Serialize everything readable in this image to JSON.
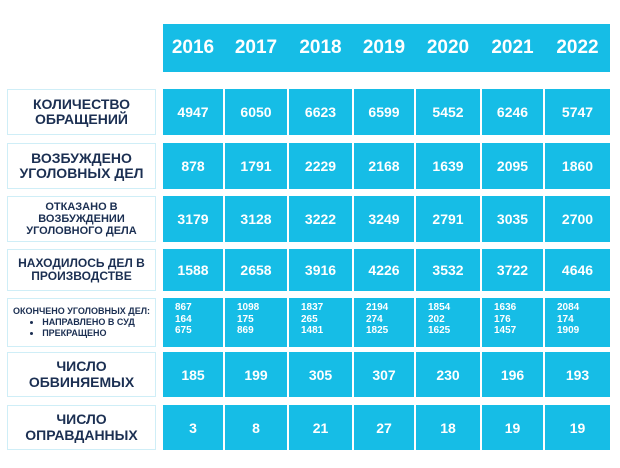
{
  "chart_data": {
    "type": "table",
    "columns": [
      "2016",
      "2017",
      "2018",
      "2019",
      "2020",
      "2021",
      "2022"
    ],
    "rows": [
      {
        "label": "КОЛИЧЕСТВО ОБРАЩЕНИЙ",
        "values": [
          4947,
          6050,
          6623,
          6599,
          5452,
          6246,
          5747
        ]
      },
      {
        "label": "ВОЗБУЖДЕНО УГОЛОВНЫХ ДЕЛ",
        "values": [
          878,
          1791,
          2229,
          2168,
          1639,
          2095,
          1860
        ]
      },
      {
        "label": "ОТКАЗАНО В ВОЗБУЖДЕНИИ УГОЛОВНОГО ДЕЛА",
        "values": [
          3179,
          3128,
          3222,
          3249,
          2791,
          3035,
          2700
        ]
      },
      {
        "label": "НАХОДИЛОСЬ ДЕЛ В ПРОИЗВОДСТВЕ",
        "values": [
          1588,
          2658,
          3916,
          4226,
          3532,
          3722,
          4646
        ]
      },
      {
        "label": "ОКОНЧЕНО УГОЛОВНЫХ ДЕЛ:",
        "sub_labels": [
          "НАПРАВЛЕНО В СУД",
          "ПРЕКРАЩЕНО"
        ],
        "values": [
          [
            867,
            164,
            675
          ],
          [
            1098,
            175,
            869
          ],
          [
            1837,
            265,
            1481
          ],
          [
            2194,
            274,
            1825
          ],
          [
            1854,
            202,
            1625
          ],
          [
            1636,
            176,
            1457
          ],
          [
            2084,
            174,
            1909
          ]
        ]
      },
      {
        "label": "ЧИСЛО ОБВИНЯЕМЫХ",
        "values": [
          185,
          199,
          305,
          307,
          230,
          196,
          193
        ]
      },
      {
        "label": "ЧИСЛО ОПРАВДАННЫХ",
        "values": [
          3,
          8,
          21,
          27,
          18,
          19,
          19
        ]
      }
    ]
  },
  "colors": {
    "cell": "#16bde6",
    "label_text": "#1b2f52",
    "cell_text": "#ffffff"
  }
}
